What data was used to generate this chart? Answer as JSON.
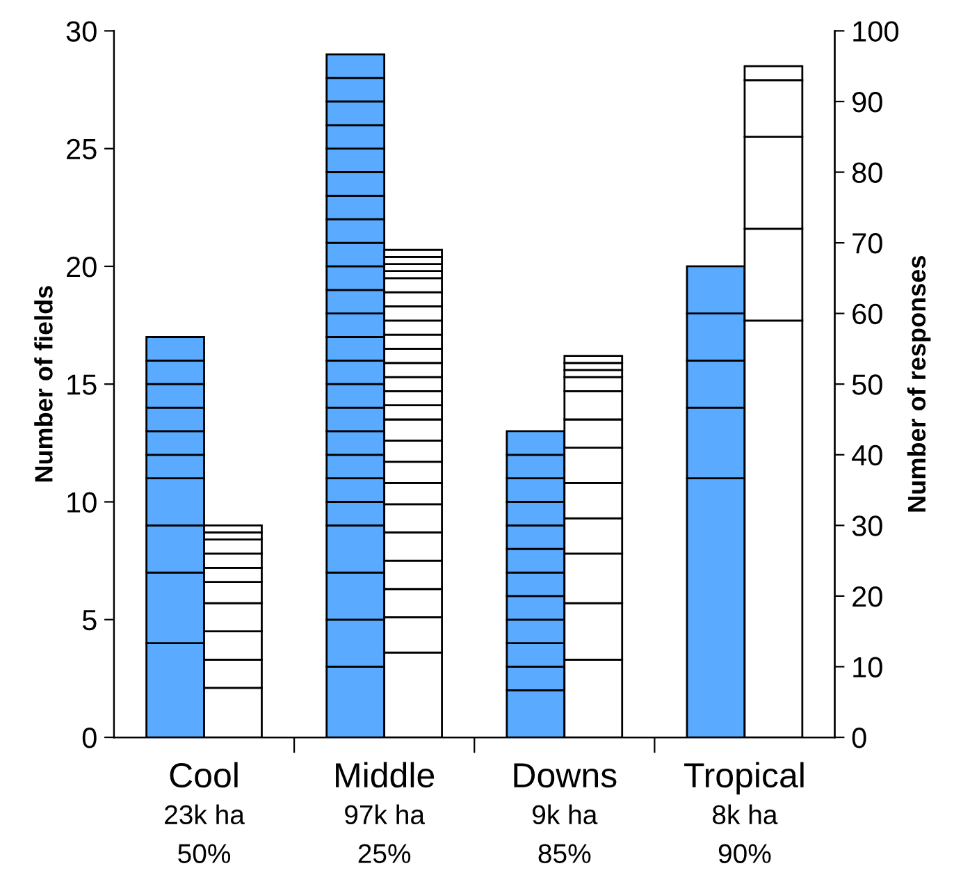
{
  "chart_data": {
    "type": "bar",
    "stacked": true,
    "categories": [
      "Cool",
      "Middle",
      "Downs",
      "Tropical"
    ],
    "ylabel": "Number of fields",
    "y2label": "Number of responses",
    "ylim": [
      0,
      30
    ],
    "yticks": [
      0,
      5,
      10,
      15,
      20,
      25,
      30
    ],
    "y2lim": [
      0,
      100
    ],
    "y2ticks": [
      0,
      10,
      20,
      30,
      40,
      50,
      60,
      70,
      80,
      90,
      100
    ],
    "grid": false,
    "legend": false,
    "annotations": [
      "23k ha",
      "50%",
      "97k ha",
      "25%",
      "9k ha",
      "85%",
      "8k ha",
      "90%"
    ],
    "series": [
      {
        "color": "#5aabff",
        "values": [
          4,
          3,
          2,
          11
        ]
      },
      {
        "color": "#5aabff",
        "values": [
          3,
          2,
          1,
          3
        ]
      },
      {
        "color": "#5aabff",
        "values": [
          2,
          2,
          1,
          2
        ]
      },
      {
        "color": "#5aabff",
        "values": [
          2,
          2,
          1,
          2
        ]
      },
      {
        "color": "#5aabff",
        "values": [
          1,
          1,
          1,
          2
        ]
      },
      {
        "color": "#5aabff",
        "values": [
          1,
          1,
          1,
          null
        ]
      },
      {
        "color": "#5aabff",
        "values": [
          1,
          1,
          1,
          null
        ]
      },
      {
        "color": "#5aabff",
        "values": [
          1,
          1,
          1,
          null
        ]
      },
      {
        "color": "#5aabff",
        "values": [
          1,
          1,
          1,
          null
        ]
      },
      {
        "color": "#5aabff",
        "values": [
          1,
          1,
          1,
          null
        ]
      },
      {
        "color": "#5aabff",
        "values": [
          null,
          1,
          1,
          null
        ]
      },
      {
        "color": "#5aabff",
        "values": [
          null,
          1,
          1,
          null
        ]
      },
      {
        "color": "#5aabff",
        "values": [
          null,
          1,
          null,
          null
        ]
      },
      {
        "color": "#5aabff",
        "values": [
          null,
          1,
          null,
          null
        ]
      },
      {
        "color": "#5aabff",
        "values": [
          null,
          1,
          null,
          null
        ]
      },
      {
        "color": "#5aabff",
        "values": [
          null,
          1,
          null,
          null
        ]
      },
      {
        "color": "#5aabff",
        "values": [
          null,
          1,
          null,
          null
        ]
      },
      {
        "color": "#5aabff",
        "values": [
          null,
          1,
          null,
          null
        ]
      },
      {
        "color": "#5aabff",
        "values": [
          null,
          1,
          null,
          null
        ]
      },
      {
        "color": "#5aabff",
        "values": [
          null,
          1,
          null,
          null
        ]
      },
      {
        "color": "#5aabff",
        "values": [
          null,
          1,
          null,
          null
        ]
      },
      {
        "color": "#5aabff",
        "values": [
          null,
          1,
          null,
          null
        ]
      },
      {
        "color": "#5aabff",
        "values": [
          null,
          1,
          null,
          null
        ]
      },
      {
        "color": "#5aabff",
        "values": [
          null,
          1,
          null,
          null
        ]
      },
      {
        "color": "#ffffff",
        "axis": "y2",
        "values": [
          7,
          12,
          11,
          59
        ]
      },
      {
        "color": "#ffffff",
        "axis": "y2",
        "values": [
          4,
          5,
          8,
          13
        ]
      },
      {
        "color": "#ffffff",
        "axis": "y2",
        "values": [
          4,
          4,
          7,
          13
        ]
      },
      {
        "color": "#ffffff",
        "axis": "y2",
        "values": [
          4,
          4,
          5,
          8
        ]
      },
      {
        "color": "#ffffff",
        "axis": "y2",
        "values": [
          3,
          4,
          5,
          2
        ]
      },
      {
        "color": "#ffffff",
        "axis": "y2",
        "values": [
          2,
          4,
          5,
          null
        ]
      },
      {
        "color": "#ffffff",
        "axis": "y2",
        "values": [
          2,
          3,
          4,
          null
        ]
      },
      {
        "color": "#ffffff",
        "axis": "y2",
        "values": [
          2,
          3,
          4,
          null
        ]
      },
      {
        "color": "#ffffff",
        "axis": "y2",
        "values": [
          1,
          3,
          2,
          null
        ]
      },
      {
        "color": "#ffffff",
        "axis": "y2",
        "values": [
          1,
          3,
          1,
          null
        ]
      },
      {
        "color": "#ffffff",
        "axis": "y2",
        "values": [
          null,
          2,
          1,
          null
        ]
      },
      {
        "color": "#ffffff",
        "axis": "y2",
        "values": [
          null,
          2,
          1,
          null
        ]
      },
      {
        "color": "#ffffff",
        "axis": "y2",
        "values": [
          null,
          2,
          null,
          null
        ]
      },
      {
        "color": "#ffffff",
        "axis": "y2",
        "values": [
          null,
          2,
          null,
          null
        ]
      },
      {
        "color": "#ffffff",
        "axis": "y2",
        "values": [
          null,
          2,
          null,
          null
        ]
      },
      {
        "color": "#ffffff",
        "axis": "y2",
        "values": [
          null,
          2,
          null,
          null
        ]
      },
      {
        "color": "#ffffff",
        "axis": "y2",
        "values": [
          null,
          2,
          null,
          null
        ]
      },
      {
        "color": "#ffffff",
        "axis": "y2",
        "values": [
          null,
          2,
          null,
          null
        ]
      },
      {
        "color": "#ffffff",
        "axis": "y2",
        "values": [
          null,
          2,
          null,
          null
        ]
      },
      {
        "color": "#ffffff",
        "axis": "y2",
        "values": [
          null,
          2,
          null,
          null
        ]
      },
      {
        "color": "#ffffff",
        "axis": "y2",
        "values": [
          null,
          1,
          null,
          null
        ]
      },
      {
        "color": "#ffffff",
        "axis": "y2",
        "values": [
          null,
          1,
          null,
          null
        ]
      },
      {
        "color": "#ffffff",
        "axis": "y2",
        "values": [
          null,
          1,
          null,
          null
        ]
      },
      {
        "color": "#ffffff",
        "axis": "y2",
        "values": [
          null,
          1,
          null,
          null
        ]
      }
    ]
  }
}
